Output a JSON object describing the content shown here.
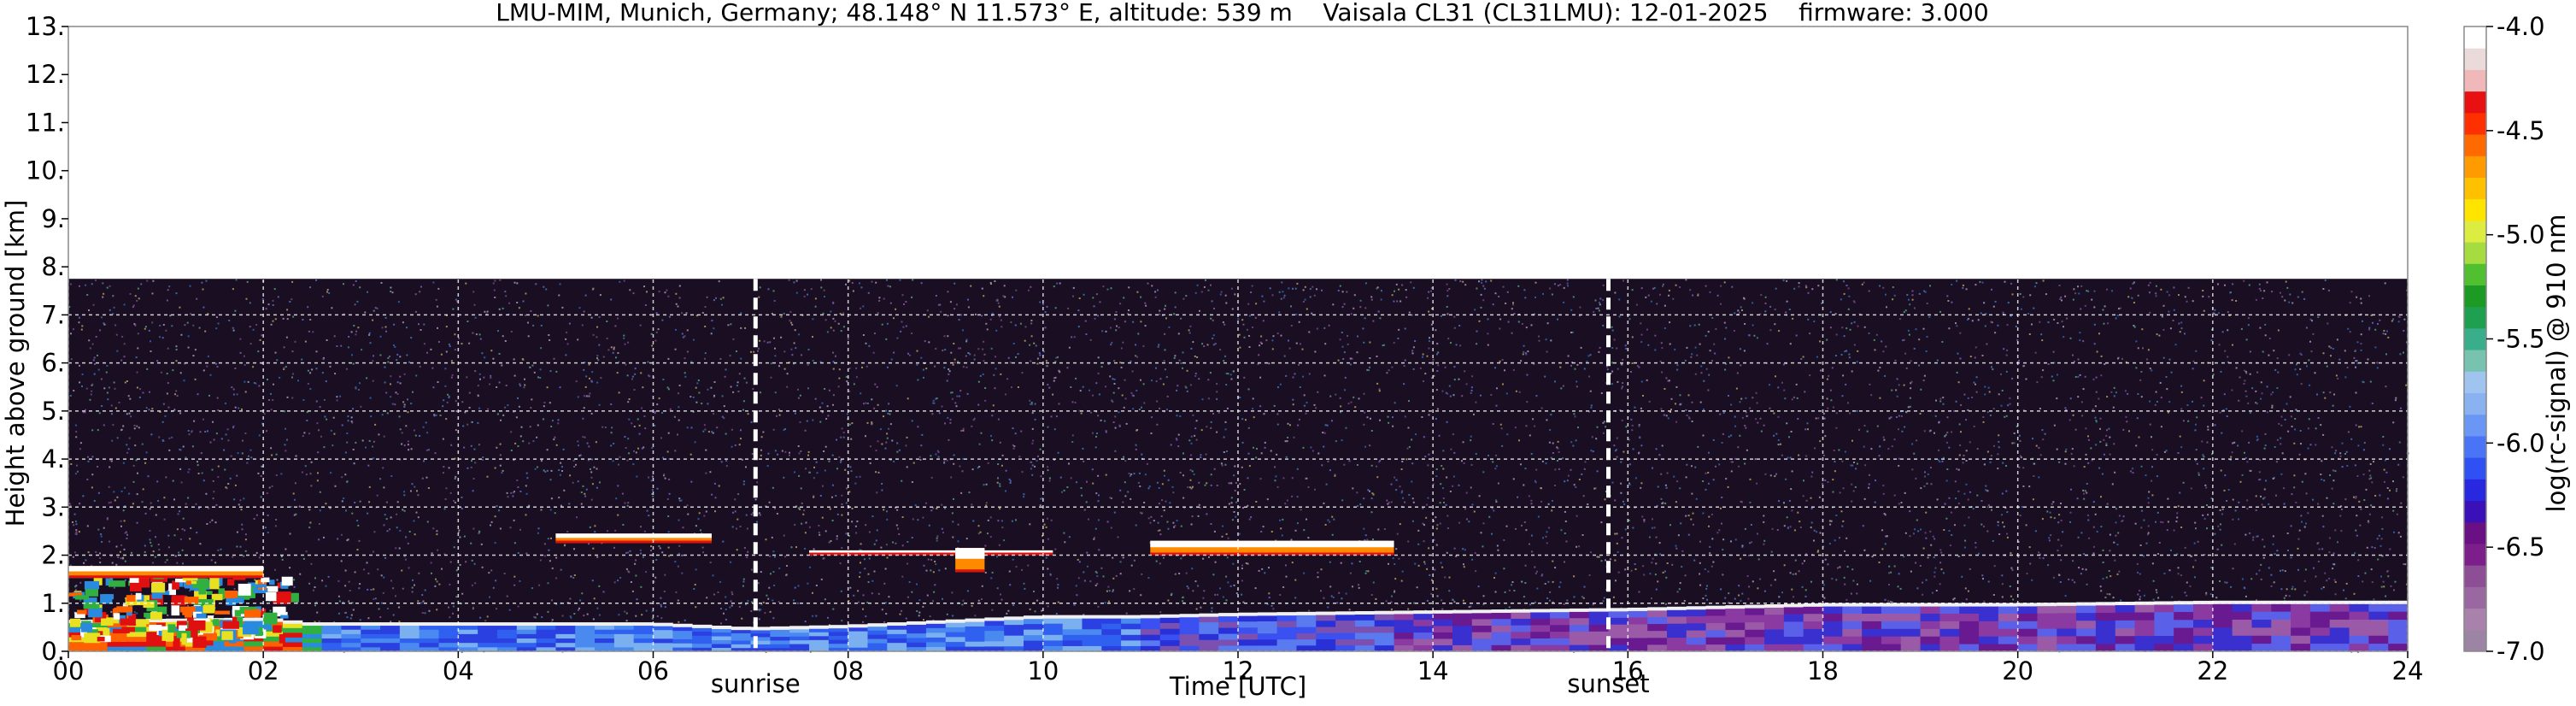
{
  "chart_data": [
    {
      "type": "heatmap",
      "title": "LMU-MIM, Munich, Germany; 48.148° N 11.573° E, altitude: 539 m    Vaisala CL31 (CL31LMU): 12-01-2025    firmware: 3.000",
      "xlabel": "Time [UTC]",
      "ylabel": "Height above ground [km]",
      "xlim": [
        0,
        24
      ],
      "ylim": [
        0,
        13
      ],
      "x_ticks": [
        "00",
        "02",
        "04",
        "06",
        "08",
        "10",
        "12",
        "14",
        "16",
        "18",
        "20",
        "22",
        "24"
      ],
      "y_ticks": [
        "0.",
        "1.",
        "2.",
        "3.",
        "4.",
        "5.",
        "6.",
        "7.",
        "8.",
        "9.",
        "10.",
        "11.",
        "12.",
        "13."
      ],
      "grid": true,
      "data_top_km": 7.75,
      "markers": [
        {
          "label": "sunrise",
          "time_h": 7.05
        },
        {
          "label": "sunset",
          "time_h": 15.8
        }
      ],
      "boundary_layer_top_km": [
        {
          "t": 0,
          "h": 0.6
        },
        {
          "t": 2,
          "h": 0.65
        },
        {
          "t": 2.5,
          "h": 0.55
        },
        {
          "t": 3,
          "h": 0.55
        },
        {
          "t": 4,
          "h": 0.55
        },
        {
          "t": 6,
          "h": 0.55
        },
        {
          "t": 7,
          "h": 0.45
        },
        {
          "t": 8,
          "h": 0.5
        },
        {
          "t": 9,
          "h": 0.6
        },
        {
          "t": 10,
          "h": 0.7
        },
        {
          "t": 11,
          "h": 0.7
        },
        {
          "t": 12,
          "h": 0.75
        },
        {
          "t": 14,
          "h": 0.8
        },
        {
          "t": 16,
          "h": 0.85
        },
        {
          "t": 18,
          "h": 0.95
        },
        {
          "t": 20,
          "h": 0.95
        },
        {
          "t": 22,
          "h": 1.0
        },
        {
          "t": 24,
          "h": 1.0
        }
      ],
      "cloud_layers": [
        {
          "t0": 0.0,
          "t1": 2.0,
          "h": 1.65,
          "thick": 0.25
        },
        {
          "t0": 5.0,
          "t1": 6.6,
          "h": 2.35,
          "thick": 0.2
        },
        {
          "t0": 7.6,
          "t1": 10.1,
          "h": 2.05,
          "thick": 0.1
        },
        {
          "t0": 9.1,
          "t1": 9.4,
          "h": 1.9,
          "thick": 0.5
        },
        {
          "t0": 11.1,
          "t1": 13.6,
          "h": 2.15,
          "thick": 0.3
        }
      ]
    },
    {
      "type": "colorbar",
      "label": "log(rc-signal) @ 910 nm",
      "range": [
        -7.0,
        -4.0
      ],
      "ticks": [
        "-4.0",
        "-4.5",
        "-5.0",
        "-5.5",
        "-6.0",
        "-6.5",
        "-7.0"
      ],
      "colors": [
        "#9c84a4",
        "#a882ab",
        "#9a68a0",
        "#8d4e95",
        "#7d1f8a",
        "#6a0f84",
        "#3a10b8",
        "#2828e0",
        "#2f50f2",
        "#4a74f6",
        "#6a96f6",
        "#8ab2f0",
        "#9fc4f0",
        "#78c2b0",
        "#3aae8a",
        "#1fa050",
        "#1c9a24",
        "#50c030",
        "#a6dc40",
        "#dcec40",
        "#ffe400",
        "#ffc000",
        "#ff9a00",
        "#ff6a00",
        "#ff3000",
        "#e81010",
        "#f0b8b8",
        "#ebdada",
        "#ffffff"
      ]
    }
  ]
}
